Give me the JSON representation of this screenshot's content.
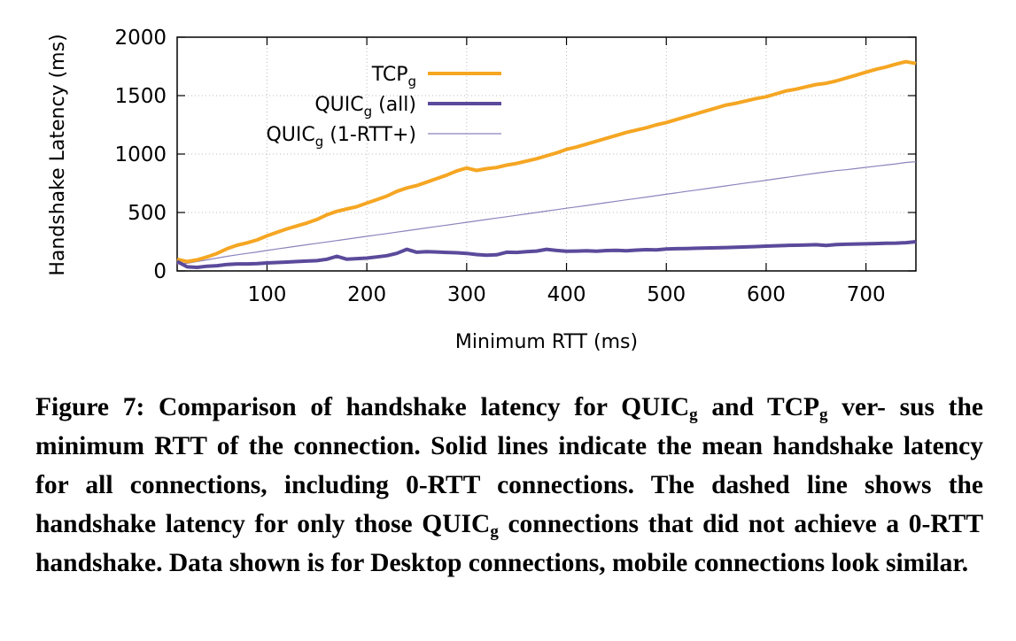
{
  "chart_data": {
    "type": "line",
    "xlabel": "Minimum RTT (ms)",
    "ylabel": "Handshake Latency (ms)",
    "xlim": [
      10,
      750
    ],
    "ylim": [
      0,
      2000
    ],
    "xticks": [
      100,
      200,
      300,
      400,
      500,
      600,
      700
    ],
    "yticks": [
      0,
      500,
      1000,
      1500,
      2000
    ],
    "grid": true,
    "legend_position": "top-left",
    "series": [
      {
        "name": "TCP",
        "name_sub": "g",
        "name_suffix": "",
        "color": "#f5a623",
        "style": "thick-solid",
        "x": [
          10,
          20,
          30,
          40,
          50,
          60,
          70,
          80,
          90,
          100,
          110,
          120,
          130,
          140,
          150,
          160,
          170,
          180,
          190,
          200,
          210,
          220,
          230,
          240,
          250,
          260,
          270,
          280,
          290,
          300,
          310,
          320,
          330,
          340,
          350,
          360,
          370,
          380,
          390,
          400,
          410,
          420,
          430,
          440,
          450,
          460,
          470,
          480,
          490,
          500,
          510,
          520,
          530,
          540,
          550,
          560,
          570,
          580,
          590,
          600,
          610,
          620,
          630,
          640,
          650,
          660,
          670,
          680,
          690,
          700,
          710,
          720,
          730,
          740,
          750
        ],
        "y": [
          100,
          80,
          95,
          120,
          150,
          190,
          220,
          240,
          265,
          300,
          330,
          360,
          385,
          410,
          440,
          480,
          510,
          530,
          550,
          580,
          610,
          640,
          680,
          710,
          730,
          760,
          790,
          820,
          855,
          880,
          860,
          875,
          885,
          905,
          920,
          940,
          960,
          985,
          1010,
          1040,
          1060,
          1085,
          1110,
          1135,
          1160,
          1185,
          1205,
          1225,
          1250,
          1270,
          1295,
          1320,
          1345,
          1370,
          1395,
          1420,
          1435,
          1455,
          1475,
          1490,
          1515,
          1540,
          1555,
          1575,
          1595,
          1605,
          1625,
          1650,
          1675,
          1700,
          1725,
          1745,
          1770,
          1790,
          1775
        ]
      },
      {
        "name": "QUIC",
        "name_sub": "g",
        "name_suffix": " (all)",
        "color": "#5b4a9b",
        "style": "thick-solid",
        "x": [
          10,
          20,
          30,
          40,
          50,
          60,
          70,
          80,
          90,
          100,
          110,
          120,
          130,
          140,
          150,
          160,
          170,
          180,
          190,
          200,
          210,
          220,
          230,
          240,
          250,
          260,
          270,
          280,
          290,
          300,
          310,
          320,
          330,
          340,
          350,
          360,
          370,
          380,
          390,
          400,
          410,
          420,
          430,
          440,
          450,
          460,
          470,
          480,
          490,
          500,
          510,
          520,
          530,
          540,
          550,
          560,
          570,
          580,
          590,
          600,
          610,
          620,
          630,
          640,
          650,
          660,
          670,
          680,
          690,
          700,
          710,
          720,
          730,
          740,
          750
        ],
        "y": [
          80,
          35,
          30,
          40,
          45,
          55,
          60,
          60,
          62,
          68,
          72,
          76,
          80,
          84,
          88,
          100,
          125,
          100,
          105,
          110,
          120,
          130,
          150,
          185,
          160,
          165,
          162,
          158,
          155,
          150,
          140,
          135,
          138,
          160,
          158,
          165,
          170,
          185,
          175,
          168,
          170,
          172,
          168,
          174,
          176,
          172,
          178,
          182,
          180,
          188,
          190,
          192,
          194,
          196,
          198,
          200,
          202,
          205,
          208,
          212,
          215,
          218,
          220,
          222,
          224,
          218,
          226,
          228,
          230,
          232,
          234,
          236,
          238,
          242,
          250
        ]
      },
      {
        "name": "QUIC",
        "name_sub": "g",
        "name_suffix": " (1-RTT+)",
        "color": "#8c84bd",
        "style": "thin-solid",
        "x": [
          10,
          20,
          30,
          40,
          50,
          60,
          70,
          80,
          90,
          100,
          110,
          120,
          130,
          140,
          150,
          160,
          170,
          180,
          190,
          200,
          210,
          220,
          230,
          240,
          250,
          260,
          270,
          280,
          290,
          300,
          310,
          320,
          330,
          340,
          350,
          360,
          370,
          380,
          390,
          400,
          410,
          420,
          430,
          440,
          450,
          460,
          470,
          480,
          490,
          500,
          510,
          520,
          530,
          540,
          550,
          560,
          570,
          580,
          590,
          600,
          610,
          620,
          630,
          640,
          650,
          660,
          670,
          680,
          690,
          700,
          710,
          720,
          730,
          740,
          750
        ],
        "y": [
          60,
          65,
          80,
          95,
          110,
          125,
          138,
          150,
          162,
          175,
          188,
          200,
          212,
          224,
          236,
          248,
          260,
          272,
          284,
          296,
          308,
          320,
          332,
          344,
          356,
          368,
          380,
          392,
          404,
          416,
          428,
          440,
          452,
          464,
          476,
          488,
          500,
          512,
          524,
          536,
          548,
          560,
          572,
          584,
          596,
          608,
          620,
          632,
          644,
          656,
          668,
          680,
          692,
          704,
          716,
          728,
          740,
          752,
          764,
          776,
          788,
          800,
          812,
          824,
          836,
          848,
          858,
          866,
          876,
          886,
          896,
          906,
          916,
          928,
          935
        ]
      }
    ]
  },
  "caption": {
    "l1_a": "Figure 7: Comparison of handshake latency for QUIC",
    "l1_sub1": "g",
    "l1_b": " and TCP",
    "l1_sub2": "g",
    "l1_c": " ver-",
    "l2": "sus the minimum RTT of the connection. Solid lines indicate the mean",
    "l3": "handshake latency for all connections, including 0-RTT connections.",
    "l4_a": "The dashed line shows the handshake latency for only those QUIC",
    "l4_sub": "g",
    "l5": "connections that did not achieve a 0-RTT handshake. Data shown is",
    "l6": "for Desktop connections, mobile connections look similar."
  }
}
